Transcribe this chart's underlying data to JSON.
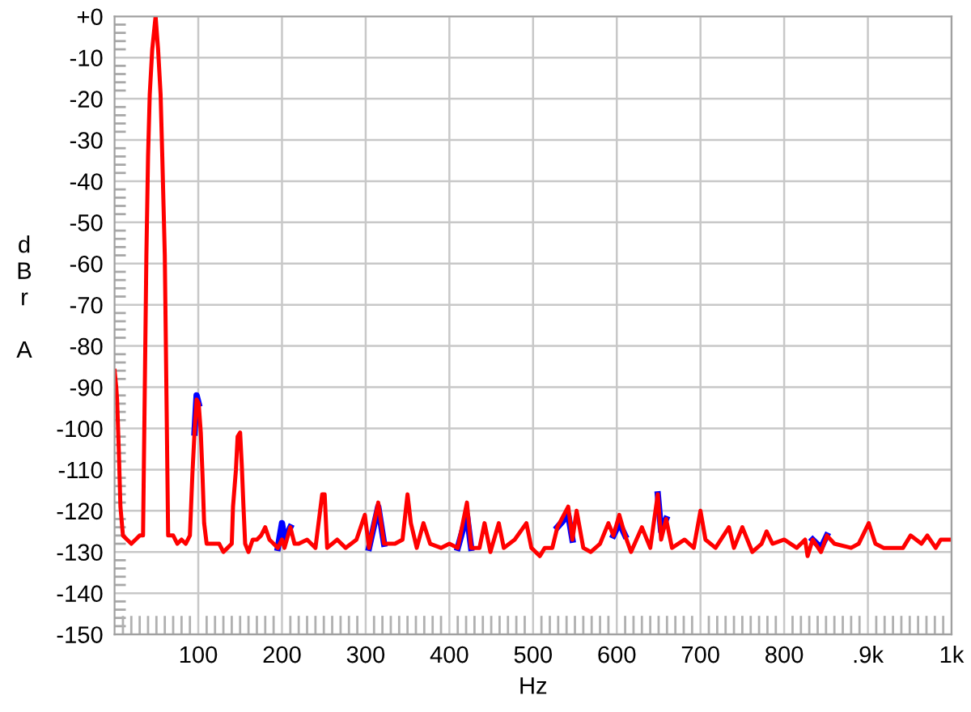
{
  "chart_data": {
    "type": "line",
    "xlabel": "Hz",
    "ylabel": "dBr A",
    "x": [
      0,
      2,
      3,
      5,
      7,
      10,
      15,
      20,
      25,
      30,
      34,
      36,
      38,
      40,
      42,
      45,
      49,
      52,
      55,
      57,
      60,
      62,
      64,
      70,
      75,
      80,
      85,
      90,
      93,
      95.5,
      98,
      100.5,
      103,
      105,
      107,
      110,
      120,
      125,
      130,
      135,
      140,
      141.5,
      145,
      147,
      150,
      152,
      154,
      156,
      160,
      165,
      170,
      175,
      180,
      185,
      190,
      195,
      200,
      203,
      210,
      215,
      220,
      230,
      240,
      248,
      251,
      254,
      266,
      276,
      289,
      299,
      304,
      315,
      322,
      335,
      344,
      350,
      354,
      361,
      369,
      377,
      390,
      400,
      410,
      421,
      426,
      436,
      442,
      449,
      459,
      465,
      478,
      492,
      498,
      508,
      514,
      523,
      529,
      542,
      547,
      552,
      560,
      569,
      580,
      590,
      596,
      603,
      610,
      617,
      630,
      640,
      649,
      653,
      659,
      666,
      681,
      692,
      700,
      706,
      718,
      734,
      740,
      750,
      762,
      773,
      779,
      786,
      800,
      815,
      825,
      828,
      834,
      844,
      851,
      860,
      880,
      889,
      901,
      909,
      919,
      932,
      942,
      951,
      964,
      971,
      981,
      987,
      1000
    ],
    "series": [
      {
        "color": "#0000ff",
        "x": [
          95.5,
          98,
          100.5,
          110,
          195,
          200,
          203,
          210,
          250,
          304,
          315,
          322,
          400,
          410,
          421,
          426,
          500,
          529,
          542,
          547,
          593,
          596,
          603,
          610,
          640,
          649,
          653,
          659,
          700,
          834,
          844,
          851
        ],
        "values": [
          -101,
          -92,
          -94,
          null,
          -129,
          -123,
          -127,
          -124,
          null,
          -129,
          -119,
          -128,
          null,
          -129,
          -121,
          -129,
          null,
          -124,
          -121,
          -127,
          null,
          -126,
          -123,
          -126,
          null,
          -116,
          -125,
          -122,
          null,
          -127,
          -129,
          -126
        ]
      },
      {
        "color": "#ff0000",
        "values": [
          -86,
          -90,
          -93,
          -105,
          -119,
          -126,
          -127,
          -128,
          -127,
          -126,
          -126,
          -92,
          -58,
          -34,
          -19,
          -8,
          0,
          -8,
          -19,
          -34,
          -58,
          -92,
          -126,
          -126,
          -128,
          -127,
          -128,
          -126,
          -111,
          -101,
          -93,
          -94,
          -101,
          -111,
          -123,
          -128,
          -128,
          -128,
          -130,
          -129,
          -128,
          -119,
          -110,
          -102,
          -101,
          -109,
          -119,
          -128,
          -130,
          -127,
          -127,
          -126,
          -124,
          -127,
          -128,
          -129,
          -127,
          -129,
          -124,
          -128,
          -128,
          -127,
          -129,
          -116,
          -116,
          -129,
          -127,
          -129,
          -127,
          -121,
          -129,
          -118,
          -128,
          -128,
          -127,
          -116,
          -123,
          -129,
          -123,
          -128,
          -129,
          -128,
          -129,
          -118,
          -129,
          -129,
          -123,
          -130,
          -123,
          -129,
          -127,
          -123,
          -129,
          -131,
          -129,
          -129,
          -124,
          -119,
          -127,
          -120,
          -129,
          -130,
          -128,
          -123,
          -126,
          -121,
          -126,
          -130,
          -124,
          -129,
          -116,
          -127,
          -122,
          -129,
          -127,
          -129,
          -120,
          -127,
          -129,
          -124,
          -129,
          -124,
          -130,
          -128,
          -125,
          -128,
          -127,
          -129,
          -127,
          -131,
          -127,
          -130,
          -126,
          -128,
          -129,
          -128,
          -123,
          -128,
          -129,
          -129,
          -129,
          -126,
          -128,
          -126,
          -129,
          -127,
          -127
        ]
      }
    ],
    "xlim": [
      0,
      1000
    ],
    "xticks": [
      100,
      200,
      300,
      400,
      500,
      600,
      700,
      800,
      {
        "value": 900,
        "label": ".9k"
      },
      {
        "value": 1000,
        "label": "1k"
      }
    ],
    "ylim": [
      -150,
      0
    ],
    "yticks": [
      -150,
      {
        "value": -148,
        "label": null
      },
      {
        "value": -146,
        "label": null
      },
      {
        "value": -144,
        "label": null
      },
      {
        "value": -142,
        "label": null
      },
      -140,
      {
        "value": -138,
        "label": null
      },
      {
        "value": -136,
        "label": null
      },
      {
        "value": -134,
        "label": null
      },
      {
        "value": -132,
        "label": null
      },
      -130,
      {
        "value": -128,
        "label": null
      },
      {
        "value": -126,
        "label": null
      },
      {
        "value": -124,
        "label": null
      },
      {
        "value": -122,
        "label": null
      },
      -120,
      {
        "value": -118,
        "label": null
      },
      {
        "value": -116,
        "label": null
      },
      {
        "value": -114,
        "label": null
      },
      {
        "value": -112,
        "label": null
      },
      -110,
      {
        "value": -108,
        "label": null
      },
      {
        "value": -106,
        "label": null
      },
      {
        "value": -104,
        "label": null
      },
      {
        "value": -102,
        "label": null
      },
      -100,
      {
        "value": -98,
        "label": null
      },
      {
        "value": -96,
        "label": null
      },
      {
        "value": -94,
        "label": null
      },
      {
        "value": -92,
        "label": null
      },
      -90,
      {
        "value": -88,
        "label": null
      },
      {
        "value": -86,
        "label": null
      },
      {
        "value": -84,
        "label": null
      },
      {
        "value": -82,
        "label": null
      },
      -80,
      {
        "value": -78,
        "label": null
      },
      {
        "value": -76,
        "label": null
      },
      {
        "value": -74,
        "label": null
      },
      {
        "value": -72,
        "label": null
      },
      -70,
      {
        "value": -68,
        "label": null
      },
      {
        "value": -66,
        "label": null
      },
      {
        "value": -64,
        "label": null
      },
      {
        "value": -62,
        "label": null
      },
      -60,
      {
        "value": -58,
        "label": null
      },
      {
        "value": -56,
        "label": null
      },
      {
        "value": -54,
        "label": null
      },
      {
        "value": -52,
        "label": null
      },
      -50,
      {
        "value": -48,
        "label": null
      },
      {
        "value": -46,
        "label": null
      },
      {
        "value": -44,
        "label": null
      },
      {
        "value": -42,
        "label": null
      },
      -40,
      {
        "value": -38,
        "label": null
      },
      {
        "value": -36,
        "label": null
      },
      {
        "value": -34,
        "label": null
      },
      {
        "value": -32,
        "label": null
      },
      -30,
      {
        "value": -28,
        "label": null
      },
      {
        "value": -26,
        "label": null
      },
      {
        "value": -24,
        "label": null
      },
      {
        "value": -22,
        "label": null
      },
      -20,
      {
        "value": -18,
        "label": null
      },
      {
        "value": -16,
        "label": null
      },
      {
        "value": -14,
        "label": null
      },
      {
        "value": -12,
        "label": null
      },
      -10,
      {
        "value": -8,
        "label": null
      },
      {
        "value": -6,
        "label": null
      },
      {
        "value": -4,
        "label": null
      },
      {
        "value": -2,
        "label": null
      },
      {
        "value": 0,
        "label": "+0"
      }
    ],
    "grid": true,
    "marker": "none",
    "line_style": "solid"
  }
}
